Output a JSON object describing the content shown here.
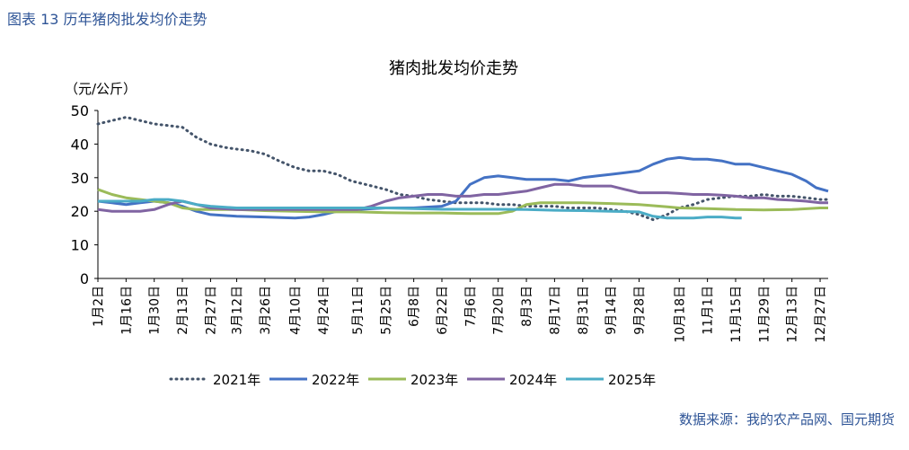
{
  "figure_caption": "图表 13  历年猪肉批发均价走势",
  "source_note": "数据来源：我的农产品网、国元期货",
  "chart_data": {
    "type": "line",
    "title": "猪肉批发均价走势",
    "ylabel": "（元/公斤）",
    "xlabel": "",
    "ylim": [
      0,
      50
    ],
    "yticks": [
      0,
      10,
      20,
      30,
      40,
      50
    ],
    "grid": false,
    "legend_position": "bottom",
    "x_day_range": [
      1,
      364
    ],
    "x_ticks": [
      {
        "label": "1月2日",
        "day": 1
      },
      {
        "label": "1月16日",
        "day": 15
      },
      {
        "label": "1月30日",
        "day": 29
      },
      {
        "label": "2月13日",
        "day": 43
      },
      {
        "label": "2月27日",
        "day": 57
      },
      {
        "label": "3月12日",
        "day": 70
      },
      {
        "label": "3月26日",
        "day": 84
      },
      {
        "label": "4月10日",
        "day": 99
      },
      {
        "label": "4月24日",
        "day": 113
      },
      {
        "label": "5月11日",
        "day": 130
      },
      {
        "label": "5月25日",
        "day": 144
      },
      {
        "label": "6月8日",
        "day": 158
      },
      {
        "label": "6月22日",
        "day": 172
      },
      {
        "label": "7月6日",
        "day": 186
      },
      {
        "label": "7月20日",
        "day": 200
      },
      {
        "label": "8月3日",
        "day": 214
      },
      {
        "label": "8月17日",
        "day": 228
      },
      {
        "label": "8月31日",
        "day": 242
      },
      {
        "label": "9月14日",
        "day": 256
      },
      {
        "label": "9月28日",
        "day": 270
      },
      {
        "label": "10月18日",
        "day": 290
      },
      {
        "label": "11月1日",
        "day": 304
      },
      {
        "label": "11月15日",
        "day": 318
      },
      {
        "label": "11月29日",
        "day": 332
      },
      {
        "label": "12月13日",
        "day": 346
      },
      {
        "label": "12月27日",
        "day": 360
      }
    ],
    "series": [
      {
        "name": "2021年",
        "color": "#44546a",
        "dash": "dotted",
        "points": [
          [
            1,
            46
          ],
          [
            8,
            47
          ],
          [
            15,
            48
          ],
          [
            22,
            47
          ],
          [
            29,
            46
          ],
          [
            36,
            45.5
          ],
          [
            43,
            45
          ],
          [
            50,
            42
          ],
          [
            57,
            40
          ],
          [
            64,
            39
          ],
          [
            70,
            38.5
          ],
          [
            77,
            38
          ],
          [
            84,
            37
          ],
          [
            91,
            35
          ],
          [
            99,
            33
          ],
          [
            106,
            32
          ],
          [
            113,
            32
          ],
          [
            120,
            31
          ],
          [
            127,
            29
          ],
          [
            134,
            28
          ],
          [
            144,
            26.5
          ],
          [
            151,
            25
          ],
          [
            158,
            24.5
          ],
          [
            165,
            23.5
          ],
          [
            172,
            23
          ],
          [
            179,
            22.5
          ],
          [
            186,
            22.5
          ],
          [
            193,
            22.5
          ],
          [
            200,
            22
          ],
          [
            207,
            22
          ],
          [
            214,
            21.5
          ],
          [
            221,
            21.5
          ],
          [
            228,
            21.5
          ],
          [
            235,
            21
          ],
          [
            242,
            21
          ],
          [
            249,
            21
          ],
          [
            256,
            20.5
          ],
          [
            263,
            20
          ],
          [
            270,
            19
          ],
          [
            277,
            17.5
          ],
          [
            284,
            19
          ],
          [
            290,
            21
          ],
          [
            297,
            22
          ],
          [
            304,
            23.5
          ],
          [
            311,
            24
          ],
          [
            318,
            24.5
          ],
          [
            325,
            24.5
          ],
          [
            332,
            25
          ],
          [
            339,
            24.5
          ],
          [
            346,
            24.5
          ],
          [
            353,
            24
          ],
          [
            360,
            23.5
          ],
          [
            364,
            23.5
          ]
        ]
      },
      {
        "name": "2022年",
        "color": "#4472c4",
        "dash": "solid",
        "points": [
          [
            1,
            23
          ],
          [
            8,
            22.5
          ],
          [
            15,
            22
          ],
          [
            22,
            22.5
          ],
          [
            29,
            23
          ],
          [
            36,
            22.5
          ],
          [
            43,
            21.5
          ],
          [
            50,
            20
          ],
          [
            57,
            19
          ],
          [
            70,
            18.5
          ],
          [
            84,
            18.3
          ],
          [
            99,
            18
          ],
          [
            106,
            18.3
          ],
          [
            113,
            19
          ],
          [
            120,
            20
          ],
          [
            130,
            20.5
          ],
          [
            144,
            21
          ],
          [
            158,
            21
          ],
          [
            172,
            21.5
          ],
          [
            179,
            23
          ],
          [
            186,
            28
          ],
          [
            193,
            30
          ],
          [
            200,
            30.5
          ],
          [
            207,
            30
          ],
          [
            214,
            29.5
          ],
          [
            221,
            29.5
          ],
          [
            228,
            29.5
          ],
          [
            235,
            29
          ],
          [
            242,
            30
          ],
          [
            249,
            30.5
          ],
          [
            256,
            31
          ],
          [
            263,
            31.5
          ],
          [
            270,
            32
          ],
          [
            277,
            34
          ],
          [
            284,
            35.5
          ],
          [
            290,
            36
          ],
          [
            297,
            35.5
          ],
          [
            304,
            35.5
          ],
          [
            311,
            35
          ],
          [
            318,
            34
          ],
          [
            325,
            34
          ],
          [
            332,
            33
          ],
          [
            339,
            32
          ],
          [
            346,
            31
          ],
          [
            353,
            29
          ],
          [
            358,
            27
          ],
          [
            364,
            26
          ]
        ]
      },
      {
        "name": "2023年",
        "color": "#9bbb59",
        "dash": "solid",
        "points": [
          [
            1,
            26.5
          ],
          [
            8,
            25
          ],
          [
            15,
            24
          ],
          [
            22,
            23.5
          ],
          [
            29,
            23
          ],
          [
            36,
            22.5
          ],
          [
            43,
            21
          ],
          [
            50,
            20.5
          ],
          [
            57,
            20.5
          ],
          [
            70,
            20.5
          ],
          [
            84,
            20.2
          ],
          [
            99,
            20
          ],
          [
            113,
            19.8
          ],
          [
            130,
            19.8
          ],
          [
            144,
            19.6
          ],
          [
            158,
            19.5
          ],
          [
            172,
            19.5
          ],
          [
            186,
            19.3
          ],
          [
            200,
            19.3
          ],
          [
            207,
            20
          ],
          [
            214,
            22
          ],
          [
            221,
            22.5
          ],
          [
            228,
            22.5
          ],
          [
            242,
            22.5
          ],
          [
            256,
            22.3
          ],
          [
            270,
            22
          ],
          [
            284,
            21.3
          ],
          [
            290,
            21
          ],
          [
            304,
            20.8
          ],
          [
            318,
            20.5
          ],
          [
            332,
            20.4
          ],
          [
            346,
            20.5
          ],
          [
            360,
            21
          ],
          [
            364,
            21
          ]
        ]
      },
      {
        "name": "2024年",
        "color": "#8064a2",
        "dash": "solid",
        "points": [
          [
            1,
            20.5
          ],
          [
            8,
            20
          ],
          [
            15,
            20
          ],
          [
            22,
            20
          ],
          [
            29,
            20.5
          ],
          [
            36,
            22
          ],
          [
            43,
            23
          ],
          [
            50,
            22
          ],
          [
            57,
            21
          ],
          [
            70,
            20.5
          ],
          [
            84,
            20.5
          ],
          [
            99,
            20.5
          ],
          [
            113,
            20.5
          ],
          [
            130,
            20.5
          ],
          [
            137,
            21.5
          ],
          [
            144,
            23
          ],
          [
            151,
            24
          ],
          [
            158,
            24.5
          ],
          [
            165,
            25
          ],
          [
            172,
            25
          ],
          [
            179,
            24.5
          ],
          [
            186,
            24.5
          ],
          [
            193,
            25
          ],
          [
            200,
            25
          ],
          [
            207,
            25.5
          ],
          [
            214,
            26
          ],
          [
            221,
            27
          ],
          [
            228,
            28
          ],
          [
            235,
            28
          ],
          [
            242,
            27.5
          ],
          [
            249,
            27.5
          ],
          [
            256,
            27.5
          ],
          [
            263,
            26.5
          ],
          [
            270,
            25.5
          ],
          [
            277,
            25.5
          ],
          [
            284,
            25.5
          ],
          [
            290,
            25.3
          ],
          [
            297,
            25
          ],
          [
            304,
            25
          ],
          [
            311,
            24.8
          ],
          [
            318,
            24.5
          ],
          [
            325,
            24
          ],
          [
            332,
            24
          ],
          [
            339,
            23.5
          ],
          [
            346,
            23.3
          ],
          [
            353,
            23
          ],
          [
            360,
            22.5
          ],
          [
            364,
            22.5
          ]
        ]
      },
      {
        "name": "2025年",
        "color": "#4bacc6",
        "dash": "solid",
        "points": [
          [
            1,
            23
          ],
          [
            8,
            23
          ],
          [
            15,
            23
          ],
          [
            22,
            23
          ],
          [
            29,
            23.5
          ],
          [
            36,
            23.5
          ],
          [
            43,
            23
          ],
          [
            50,
            22
          ],
          [
            57,
            21.5
          ],
          [
            70,
            21
          ],
          [
            84,
            21
          ],
          [
            99,
            21
          ],
          [
            113,
            21
          ],
          [
            130,
            21
          ],
          [
            144,
            21
          ],
          [
            158,
            20.8
          ],
          [
            172,
            20.6
          ],
          [
            186,
            20.6
          ],
          [
            200,
            20.6
          ],
          [
            214,
            20.5
          ],
          [
            228,
            20.3
          ],
          [
            242,
            20.2
          ],
          [
            256,
            20
          ],
          [
            270,
            19.8
          ],
          [
            277,
            18.5
          ],
          [
            284,
            18
          ],
          [
            290,
            18
          ],
          [
            297,
            18
          ],
          [
            304,
            18.3
          ],
          [
            311,
            18.3
          ],
          [
            318,
            18
          ],
          [
            321,
            18
          ]
        ]
      }
    ]
  }
}
